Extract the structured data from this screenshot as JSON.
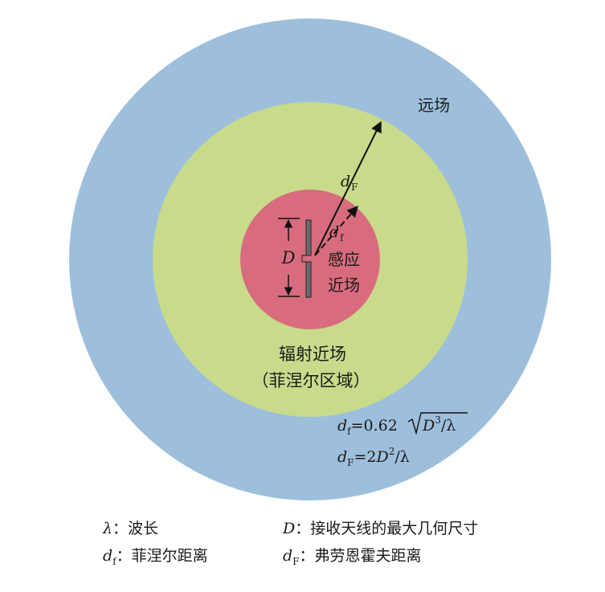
{
  "zones": {
    "far_field": {
      "label": "远场",
      "color": "#9dbfdc"
    },
    "radiating_near_field": {
      "label_line1": "辐射近场",
      "label_line2": "（菲涅尔区域）",
      "color": "#c8db8b"
    },
    "reactive_near_field": {
      "label_line1": "感应",
      "label_line2": "近场",
      "color": "#d86c7e"
    }
  },
  "symbols": {
    "D": "D",
    "d": "d",
    "f": "f",
    "F": "F"
  },
  "formulas": {
    "df_lhs": "=0.62",
    "df_radicand": "D",
    "df_exp": "3",
    "df_tail": "/λ",
    "dF_lhs": "=2",
    "dF_D": "D",
    "dF_exp": "2",
    "dF_tail": "/λ"
  },
  "legend": {
    "lambda_symbol": "λ",
    "lambda_text": "：波长",
    "D_symbol": "D",
    "D_text": "：接收天线的最大几何尺寸",
    "df_text": "：菲涅尔距离",
    "dF_text": "：弗劳恩霍夫距离"
  }
}
